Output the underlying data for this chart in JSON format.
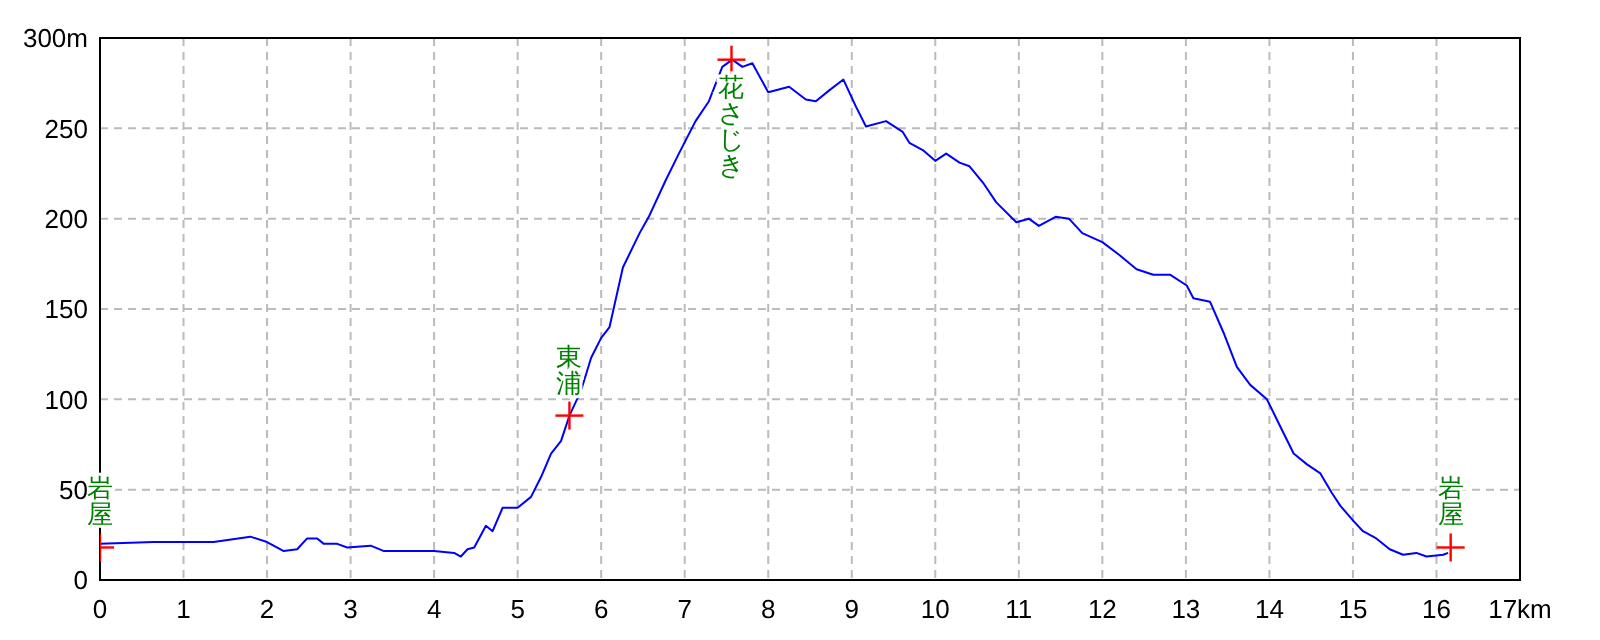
{
  "chart_data": {
    "type": "line",
    "xlim": [
      0,
      17
    ],
    "ylim": [
      0,
      300
    ],
    "xticks": [
      0,
      1,
      2,
      3,
      4,
      5,
      6,
      7,
      8,
      9,
      10,
      11,
      12,
      13,
      14,
      15,
      16,
      {
        "value": 17,
        "label": "17km"
      }
    ],
    "yticks": [
      0,
      50,
      100,
      150,
      200,
      250,
      {
        "value": 300,
        "label": "300m"
      }
    ],
    "grid": true,
    "series": [
      {
        "color": "#0000ff",
        "line_style": "solid",
        "x": [
          0,
          0.64,
          0.88,
          1.36,
          1.8,
          2.0,
          2.2,
          2.36,
          2.48,
          2.6,
          2.68,
          2.84,
          2.96,
          3.24,
          3.4,
          3.72,
          4.0,
          4.24,
          4.32,
          4.4,
          4.48,
          4.62,
          4.7,
          4.82,
          5.0,
          5.16,
          5.28,
          5.4,
          5.52,
          5.62,
          5.76,
          5.88,
          6.0,
          6.1,
          6.26,
          6.46,
          6.57,
          6.77,
          6.93,
          7.13,
          7.29,
          7.45,
          7.57,
          7.69,
          7.81,
          8.0,
          8.25,
          8.45,
          8.57,
          8.73,
          8.9,
          9.05,
          9.17,
          9.41,
          9.61,
          9.69,
          9.85,
          10.0,
          10.13,
          10.29,
          10.41,
          10.57,
          10.73,
          10.97,
          11.12,
          11.24,
          11.44,
          11.6,
          11.76,
          12.0,
          12.2,
          12.41,
          12.61,
          12.81,
          13.01,
          13.09,
          13.29,
          13.45,
          13.61,
          13.77,
          13.97,
          14.13,
          14.29,
          14.45,
          14.61,
          14.75,
          14.85,
          15.0,
          15.12,
          15.28,
          15.44,
          15.6,
          15.76,
          15.88,
          16.08,
          16.14
        ],
        "values": [
          20,
          21,
          21,
          21,
          24,
          21,
          16,
          17,
          23,
          23,
          20,
          20,
          18,
          19,
          16,
          16,
          16,
          15,
          13,
          17,
          18,
          30,
          27,
          40,
          40,
          46,
          57,
          70,
          77,
          91,
          105,
          123,
          134,
          140,
          173,
          192,
          201,
          221,
          236,
          254,
          265,
          284,
          288,
          284,
          286,
          270,
          273,
          266,
          265,
          271,
          277,
          262,
          251,
          254,
          248,
          242,
          238,
          232,
          236,
          231,
          229,
          220,
          209,
          198,
          200,
          196,
          201,
          200,
          192,
          187,
          180,
          172,
          169,
          169,
          163,
          156,
          154,
          137,
          118,
          108,
          100,
          85,
          70,
          64,
          59,
          48,
          41,
          33,
          27,
          23,
          17,
          14,
          15,
          13,
          14,
          15
        ]
      },
      {
        "type": "scatter",
        "color": "#ff0000",
        "marker": "cross",
        "x": [
          0,
          5.62,
          7.56,
          16.17
        ],
        "values": [
          18,
          91,
          288,
          18
        ]
      }
    ],
    "annotations": [
      {
        "text": "岩屋",
        "x": 0,
        "y": 18
      },
      {
        "text": "東浦",
        "x": 5.62,
        "y": 91
      },
      {
        "text": "花さじき",
        "x": 7.56,
        "y": 288
      },
      {
        "text": "岩屋",
        "x": 16.17,
        "y": 18
      }
    ]
  }
}
